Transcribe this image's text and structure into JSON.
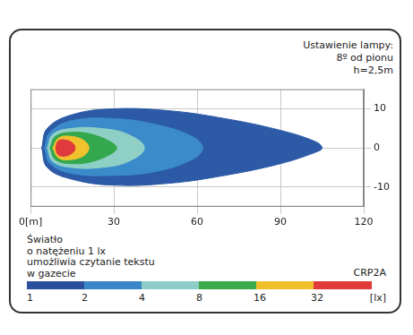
{
  "chart_data": {
    "type": "contour",
    "title": "CRP2A",
    "annotations": {
      "lamp_setting": [
        "Ustawienie lampy:",
        "8º od pionu",
        "h=2,5m"
      ],
      "note": [
        "Światło",
        "o natężeniu 1 lx",
        "umożliwia czytanie tekstu",
        "w gazecie"
      ]
    },
    "xlim": [
      0,
      120
    ],
    "xticks": [
      {
        "value": 0,
        "label": "0[m]"
      },
      30,
      60,
      90,
      120
    ],
    "ylim": [
      -15,
      15
    ],
    "yticks": [
      -10,
      0,
      10
    ],
    "grid": true,
    "series": [
      {
        "level": 1,
        "color": "#2d5aa6",
        "points": [
          [
            4,
            0
          ],
          [
            6,
            -5
          ],
          [
            15,
            -8
          ],
          [
            30,
            -9.5
          ],
          [
            50,
            -9
          ],
          [
            70,
            -7
          ],
          [
            90,
            -4
          ],
          [
            103,
            -1
          ],
          [
            105,
            0
          ],
          [
            103,
            1.5
          ],
          [
            90,
            4.5
          ],
          [
            70,
            7.5
          ],
          [
            50,
            9.5
          ],
          [
            30,
            10
          ],
          [
            15,
            8.5
          ],
          [
            6,
            5
          ],
          [
            4,
            0
          ]
        ]
      },
      {
        "level": 2,
        "color": "#3b8bcb",
        "points": [
          [
            5,
            0
          ],
          [
            7,
            -4
          ],
          [
            15,
            -6.5
          ],
          [
            30,
            -7
          ],
          [
            45,
            -6
          ],
          [
            58,
            -3
          ],
          [
            62,
            0
          ],
          [
            58,
            3
          ],
          [
            45,
            6
          ],
          [
            30,
            7.5
          ],
          [
            15,
            7
          ],
          [
            7,
            4
          ],
          [
            5,
            0
          ]
        ]
      },
      {
        "level": 4,
        "color": "#8fd0c6",
        "points": [
          [
            6,
            0
          ],
          [
            8,
            -3.5
          ],
          [
            15,
            -5
          ],
          [
            25,
            -5
          ],
          [
            35,
            -3.5
          ],
          [
            41,
            0
          ],
          [
            35,
            3.5
          ],
          [
            25,
            5
          ],
          [
            15,
            5
          ],
          [
            8,
            3.5
          ],
          [
            6,
            0
          ]
        ]
      },
      {
        "level": 8,
        "color": "#33a84c",
        "points": [
          [
            7,
            0
          ],
          [
            9,
            -3
          ],
          [
            15,
            -4
          ],
          [
            22,
            -3.5
          ],
          [
            29,
            -1.5
          ],
          [
            31,
            0
          ],
          [
            29,
            1.5
          ],
          [
            22,
            3.5
          ],
          [
            15,
            4
          ],
          [
            9,
            3
          ],
          [
            7,
            0
          ]
        ]
      },
      {
        "level": 16,
        "color": "#f1c12e",
        "points": [
          [
            8,
            0
          ],
          [
            10,
            -2.5
          ],
          [
            14,
            -3
          ],
          [
            19,
            -2
          ],
          [
            21,
            0
          ],
          [
            19,
            2
          ],
          [
            14,
            3
          ],
          [
            10,
            2.5
          ],
          [
            8,
            0
          ]
        ]
      },
      {
        "level": 32,
        "color": "#e03a3c",
        "points": [
          [
            9,
            0
          ],
          [
            10,
            -1.8
          ],
          [
            13,
            -2
          ],
          [
            15.5,
            -1
          ],
          [
            16,
            0
          ],
          [
            15.5,
            1
          ],
          [
            13,
            2
          ],
          [
            10,
            1.8
          ],
          [
            9,
            0
          ]
        ]
      }
    ],
    "colorbar": {
      "ticks": [
        1,
        2,
        4,
        8,
        16,
        32
      ],
      "colors": [
        "#2b4f9c",
        "#3a86c8",
        "#8dcfc8",
        "#3aaa4a",
        "#f0c02c",
        "#e03a3a"
      ],
      "label": "[lx]"
    }
  }
}
